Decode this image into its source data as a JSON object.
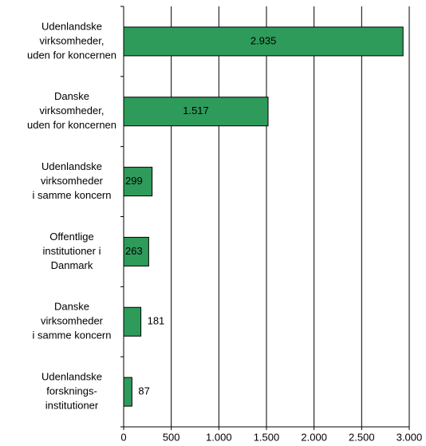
{
  "chart_data": {
    "type": "hbar",
    "categories": [
      [
        "Udenlandske",
        "virksomheder,",
        "uden for koncernen"
      ],
      [
        "Danske",
        "virksomheder,",
        "uden for koncernen"
      ],
      [
        "Udenlandske",
        "virksomheder",
        "i samme koncern"
      ],
      [
        "Offentlige",
        "institutioner i",
        "Danmark"
      ],
      [
        "Danske",
        "virksomheder",
        "i samme koncern"
      ],
      [
        "Udenlandske",
        "forsknings-",
        "institutioner"
      ]
    ],
    "values": [
      2935,
      1517,
      299,
      263,
      181,
      87
    ],
    "value_labels": [
      "2.935",
      "1.517",
      "299",
      "263",
      "181",
      "87"
    ],
    "color": "#2e9b5a",
    "xlim": [
      0,
      3000
    ],
    "xticks": [
      0,
      500,
      {
        "value": 1000,
        "label": "1.000"
      },
      {
        "value": 1500,
        "label": "1.500"
      },
      {
        "value": 2000,
        "label": "2.000"
      },
      {
        "value": 2500,
        "label": "2.500"
      },
      {
        "value": 3000,
        "label": "3.000"
      }
    ],
    "grid": true
  }
}
